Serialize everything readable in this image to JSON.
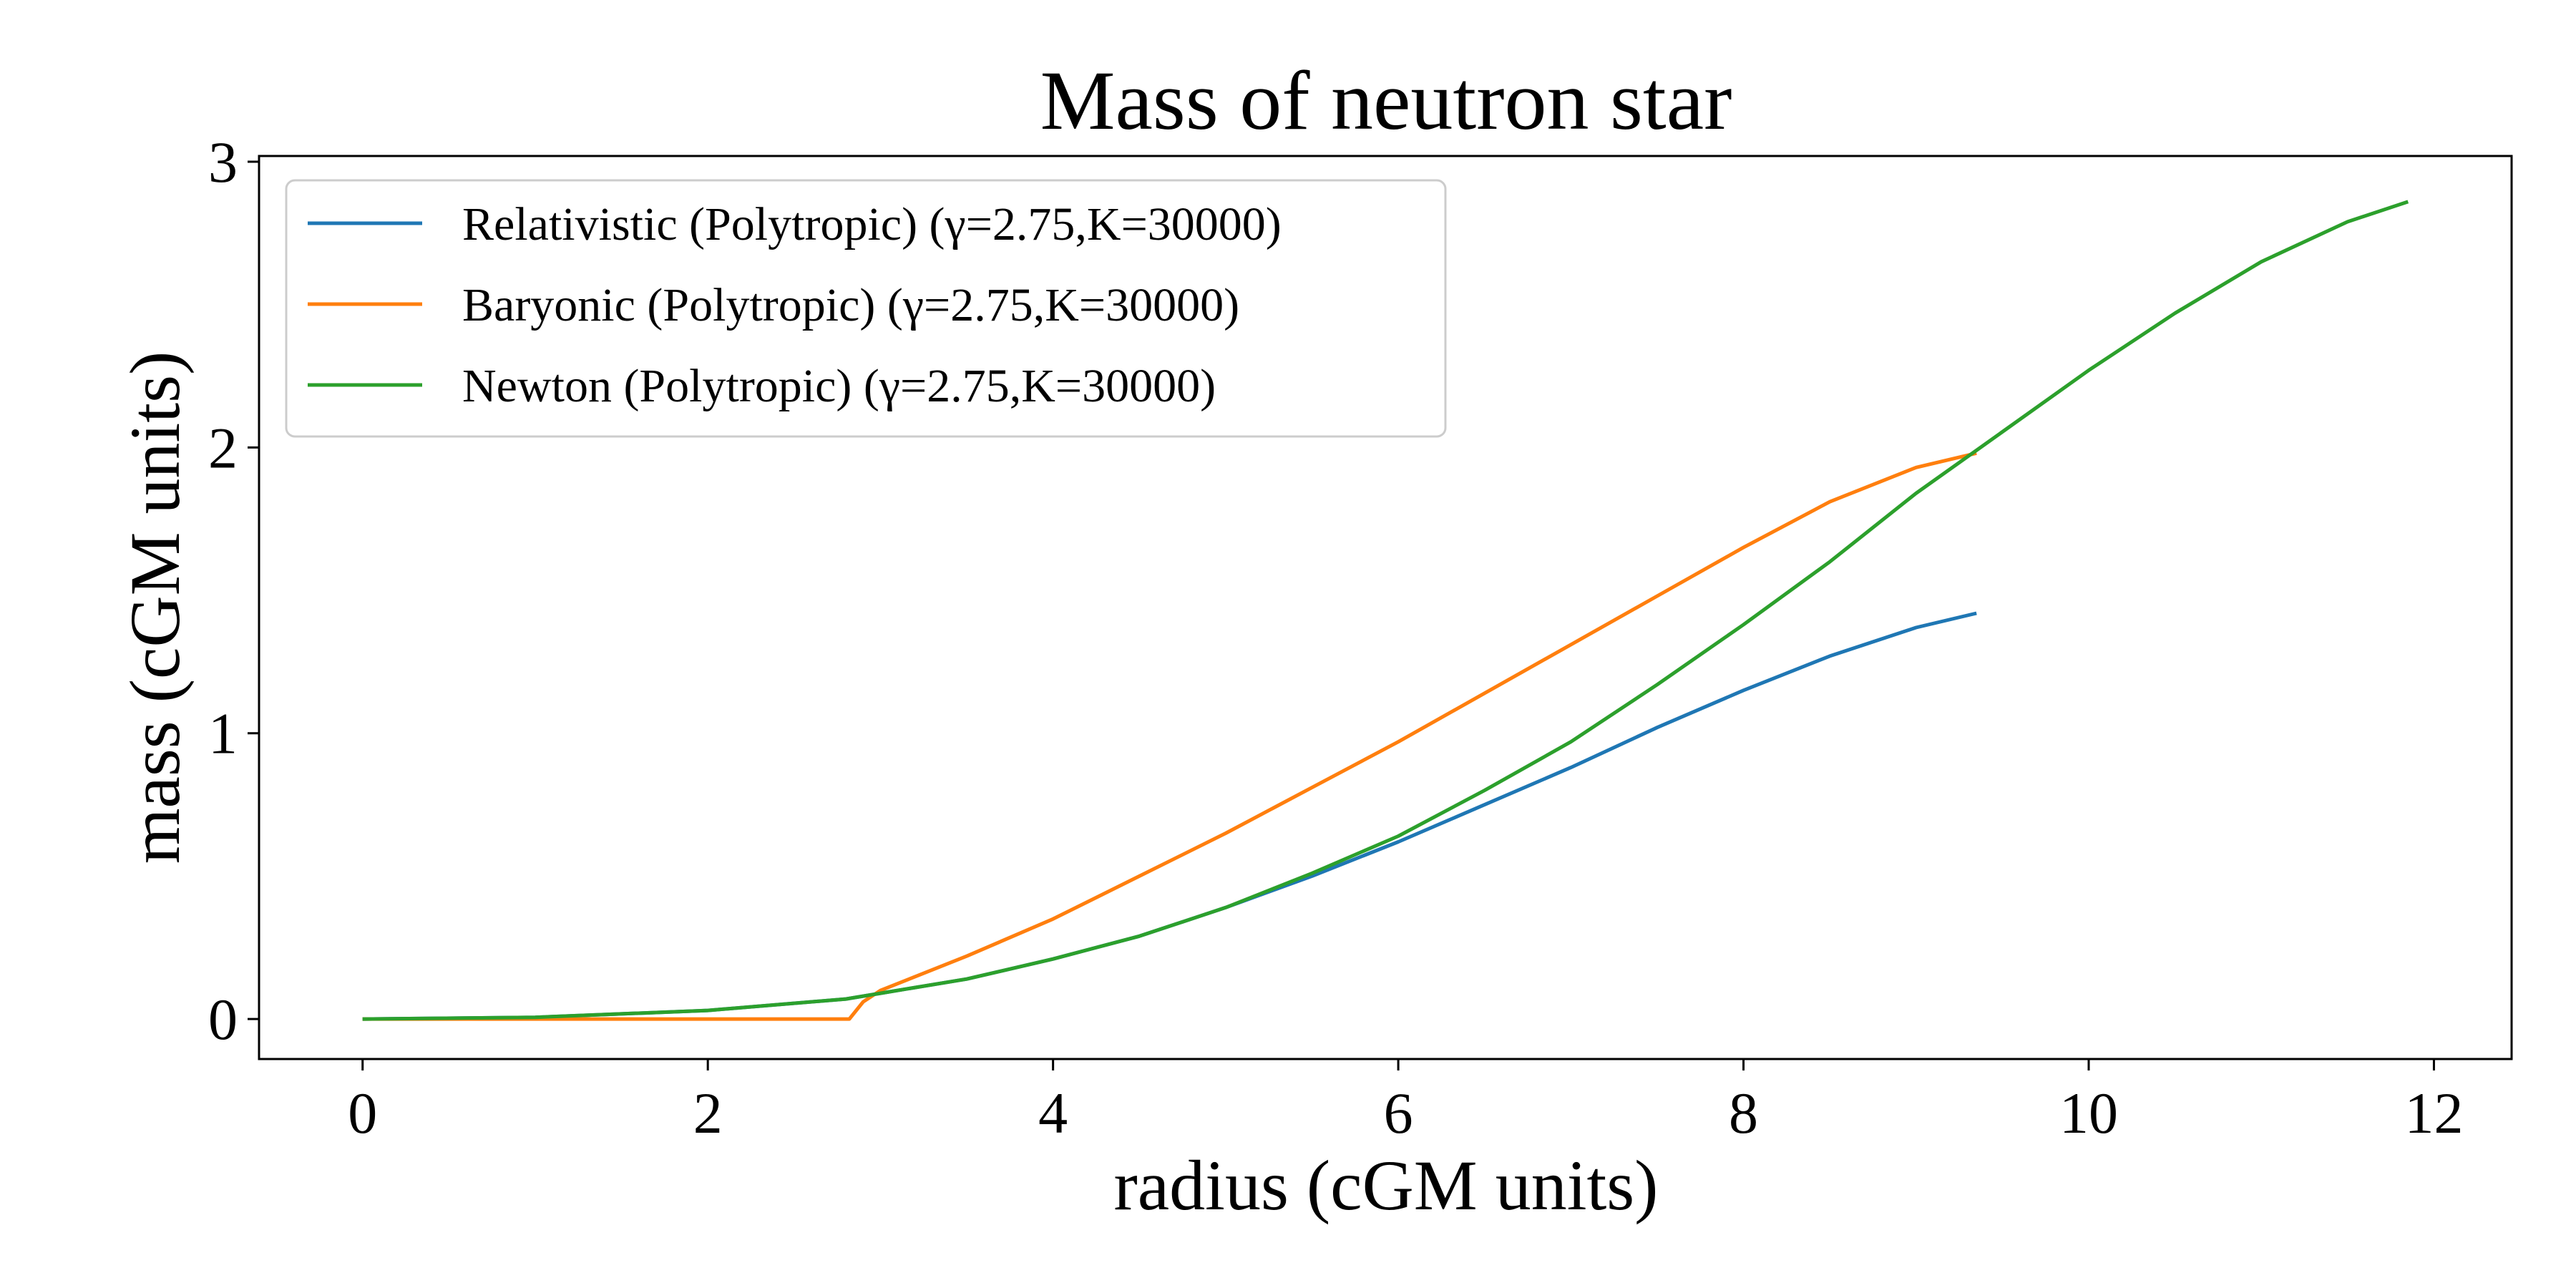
{
  "chart_data": {
    "type": "line",
    "title": "Mass of neutron star",
    "xlabel": "radius (cGM units)",
    "ylabel": "mass (cGM units)",
    "xlim": [
      -0.6,
      12.45
    ],
    "ylim": [
      -0.14,
      3.02
    ],
    "xticks": [
      0,
      2,
      4,
      6,
      8,
      10,
      12
    ],
    "yticks": [
      0,
      1,
      2,
      3
    ],
    "grid": false,
    "legend_position": "top-left",
    "series": [
      {
        "name": "Relativistic (Polytropic) (γ=2.75,K=30000)",
        "color": "#1f77b4",
        "x": [
          0,
          1,
          2,
          2.8,
          3,
          3.5,
          4,
          4.5,
          5,
          5.5,
          6,
          6.5,
          7,
          7.5,
          8,
          8.5,
          9,
          9.35
        ],
        "y": [
          0,
          0.006,
          0.03,
          0.07,
          0.09,
          0.14,
          0.21,
          0.29,
          0.39,
          0.5,
          0.62,
          0.75,
          0.88,
          1.02,
          1.15,
          1.27,
          1.37,
          1.42
        ]
      },
      {
        "name": "Baryonic (Polytropic) (γ=2.75,K=30000)",
        "color": "#ff7f0e",
        "x": [
          0,
          1,
          2,
          2.82,
          2.9,
          3,
          3.5,
          4,
          4.5,
          5,
          5.5,
          6,
          6.5,
          7,
          7.5,
          8,
          8.5,
          9,
          9.35
        ],
        "y": [
          0,
          0,
          0,
          0,
          0.06,
          0.1,
          0.22,
          0.35,
          0.5,
          0.65,
          0.81,
          0.97,
          1.14,
          1.31,
          1.48,
          1.65,
          1.81,
          1.93,
          1.98
        ]
      },
      {
        "name": "Newton (Polytropic) (γ=2.75,K=30000)",
        "color": "#2ca02c",
        "x": [
          0,
          1,
          2,
          2.8,
          3,
          3.5,
          4,
          4.5,
          5,
          5.5,
          6,
          6.5,
          7,
          7.5,
          8,
          8.5,
          9,
          9.35,
          10,
          10.5,
          11,
          11.5,
          11.85
        ],
        "y": [
          0,
          0.006,
          0.03,
          0.07,
          0.09,
          0.14,
          0.21,
          0.29,
          0.39,
          0.51,
          0.64,
          0.8,
          0.97,
          1.17,
          1.38,
          1.6,
          1.84,
          1.99,
          2.27,
          2.47,
          2.65,
          2.79,
          2.86
        ]
      }
    ]
  }
}
